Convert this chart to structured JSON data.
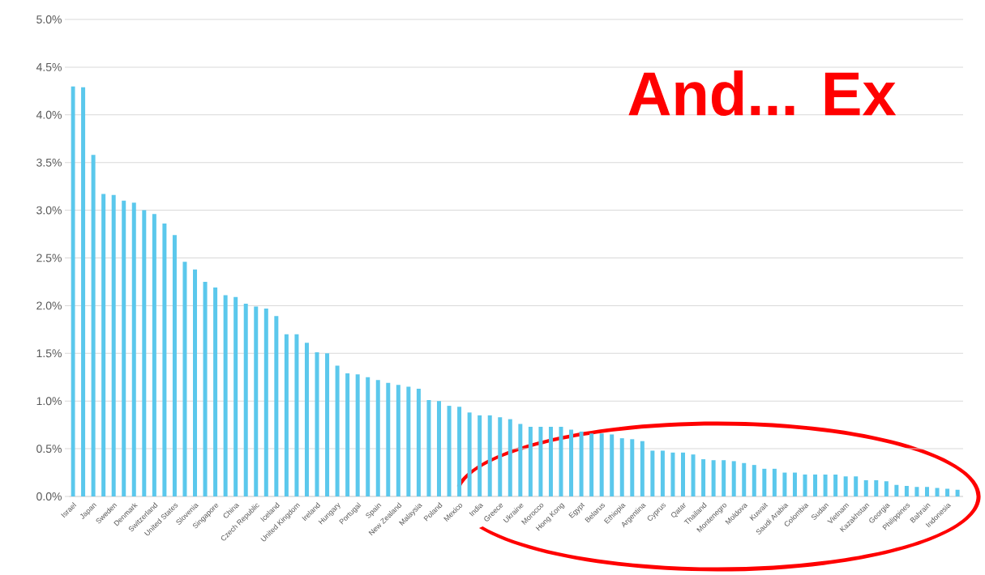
{
  "chart_data": {
    "type": "bar",
    "categories": [
      "Israel",
      null,
      "Japan",
      null,
      "Sweden",
      null,
      "Denmark",
      null,
      "Switzerland",
      null,
      "United States",
      null,
      "Slovenia",
      null,
      "Singapore",
      null,
      "China",
      null,
      "Czech Republic",
      null,
      "Iceland",
      null,
      "United Kingdom",
      null,
      "Ireland",
      null,
      "Hungary",
      null,
      "Portugal",
      null,
      "Spain",
      null,
      "New Zealand",
      null,
      "Malaysia",
      null,
      "Poland",
      null,
      "Mexico",
      null,
      "India",
      null,
      "Greece",
      null,
      "Ukraine",
      null,
      "Morocco",
      null,
      "Hong Kong",
      null,
      "Egypt",
      null,
      "Belarus",
      null,
      "Ethiopia",
      null,
      "Argentina",
      null,
      "Cyprus",
      null,
      "Qatar",
      null,
      "Thailand",
      null,
      "Montenegro",
      null,
      "Moldova",
      null,
      "Kuwait",
      null,
      "Saudi Arabia",
      null,
      "Colombia",
      null,
      "Sudan",
      null,
      "Vietnam",
      null,
      "Kazakhstan",
      null,
      "Georgia",
      null,
      "Philippines",
      null,
      "Bahrain",
      null,
      "Indonesia",
      null
    ],
    "values": [
      4.3,
      4.29,
      3.58,
      3.17,
      3.16,
      3.1,
      3.08,
      3.0,
      2.96,
      2.86,
      2.74,
      2.46,
      2.38,
      2.25,
      2.19,
      2.11,
      2.09,
      2.02,
      1.99,
      1.97,
      1.89,
      1.7,
      1.7,
      1.61,
      1.51,
      1.5,
      1.37,
      1.29,
      1.28,
      1.25,
      1.22,
      1.19,
      1.17,
      1.15,
      1.13,
      1.01,
      1.0,
      0.95,
      0.94,
      0.88,
      0.85,
      0.85,
      0.83,
      0.81,
      0.76,
      0.73,
      0.73,
      0.73,
      0.73,
      0.7,
      0.68,
      0.66,
      0.66,
      0.65,
      0.61,
      0.6,
      0.58,
      0.48,
      0.48,
      0.46,
      0.46,
      0.44,
      0.39,
      0.38,
      0.38,
      0.37,
      0.35,
      0.33,
      0.29,
      0.29,
      0.25,
      0.25,
      0.23,
      0.23,
      0.23,
      0.23,
      0.21,
      0.21,
      0.17,
      0.17,
      0.16,
      0.12,
      0.11,
      0.1,
      0.1,
      0.09,
      0.08,
      0.07
    ],
    "color": "#5bc8ec",
    "ylim": [
      0,
      5.0
    ],
    "yticks": [
      {
        "value": 0,
        "label": "0.0%"
      },
      {
        "value": 0.5,
        "label": "0.5%"
      },
      {
        "value": 1.0,
        "label": "1.0%"
      },
      {
        "value": 1.5,
        "label": "1.5%"
      },
      {
        "value": 2.0,
        "label": "2.0%"
      },
      {
        "value": 2.5,
        "label": "2.5%"
      },
      {
        "value": 3.0,
        "label": "3.0%"
      },
      {
        "value": 3.5,
        "label": "3.5%"
      },
      {
        "value": 4.0,
        "label": "4.0%"
      },
      {
        "value": 4.5,
        "label": "4.5%"
      },
      {
        "value": 5.0,
        "label": "5.0%"
      }
    ],
    "grid": "y",
    "annotations": [
      "And... Ex"
    ]
  }
}
